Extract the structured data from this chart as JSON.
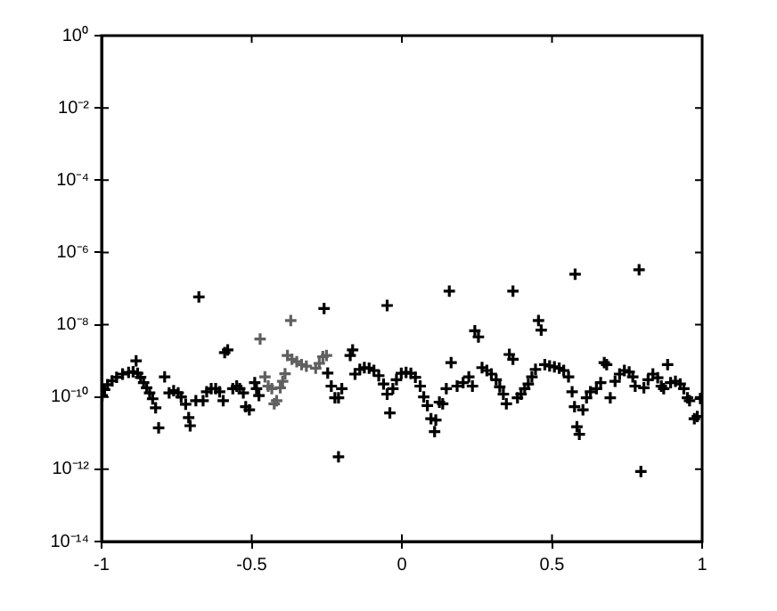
{
  "chart_data": {
    "type": "scatter",
    "log": "y",
    "grid": false,
    "legend": false,
    "marker": "cross",
    "xlim": [
      -1,
      1
    ],
    "xticks": [
      -1,
      -0.5,
      0,
      0.5,
      1
    ],
    "ylim": [
      1e-14,
      1
    ],
    "yticks": [
      {
        "value": 1e-14,
        "label": "10⁻¹⁴"
      },
      {
        "value": 1e-12,
        "label": "10⁻¹²"
      },
      {
        "value": 1e-10,
        "label": "10⁻¹⁰"
      },
      {
        "value": 1e-08,
        "label": "10⁻⁸"
      },
      {
        "value": 1e-06,
        "label": "10⁻⁶"
      },
      {
        "value": 0.0001,
        "label": "10⁻⁴"
      },
      {
        "value": 0.01,
        "label": "10⁻²"
      },
      {
        "value": 1,
        "label": "10⁰"
      }
    ],
    "series": [
      {
        "color": "#000000",
        "x": [
          -0.998,
          -0.99,
          -0.98,
          -0.965,
          -0.95,
          -0.93,
          -0.91,
          -0.895,
          -0.88,
          -0.87,
          -0.86,
          -0.85,
          -0.84,
          -0.83,
          -0.82,
          -0.81,
          -0.885,
          -0.79,
          -0.775,
          -0.76,
          -0.745,
          -0.735,
          -0.72,
          -0.71,
          -0.705,
          -0.686,
          -0.676,
          -0.662,
          -0.65,
          -0.635,
          -0.62,
          -0.607,
          -0.595,
          -0.59,
          -0.58,
          -0.563,
          -0.55,
          -0.54,
          -0.528,
          -0.52,
          -0.508,
          -0.49,
          -0.484,
          -0.476,
          -0.259,
          -0.247,
          -0.235,
          -0.223,
          -0.211,
          -0.2,
          -0.211,
          -0.172,
          -0.164,
          -0.156,
          -0.14,
          -0.125,
          -0.109,
          -0.093,
          -0.077,
          -0.061,
          -0.049,
          -0.04,
          -0.049,
          -0.03,
          -0.018,
          -0.002,
          0.014,
          0.03,
          0.045,
          0.061,
          0.073,
          0.085,
          0.097,
          0.109,
          0.113,
          0.125,
          0.136,
          0.164,
          0.158,
          0.148,
          0.184,
          0.204,
          0.223,
          0.235,
          0.243,
          0.255,
          0.267,
          0.283,
          0.298,
          0.314,
          0.326,
          0.338,
          0.348,
          0.358,
          0.37,
          0.37,
          0.385,
          0.397,
          0.409,
          0.421,
          0.433,
          0.445,
          0.455,
          0.464,
          0.476,
          0.492,
          0.508,
          0.524,
          0.539,
          0.555,
          0.567,
          0.575,
          0.583,
          0.591,
          0.577,
          0.603,
          0.615,
          0.628,
          0.648,
          0.662,
          0.674,
          0.682,
          0.694,
          0.71,
          0.725,
          0.741,
          0.757,
          0.769,
          0.777,
          0.79,
          0.796,
          0.806,
          0.82,
          0.836,
          0.852,
          0.864,
          0.885,
          0.872,
          0.895,
          0.911,
          0.927,
          0.939,
          0.951,
          0.958,
          0.974,
          0.984,
          0.994
        ],
        "values": [
          1.1e-10,
          1.6e-10,
          2.2e-10,
          2.8e-10,
          3.5e-10,
          4.3e-10,
          4.8e-10,
          5e-10,
          4.5e-10,
          3.5e-10,
          2.5e-10,
          1.8e-10,
          1.3e-10,
          8.9e-11,
          5e-11,
          1.4e-11,
          1e-09,
          3.6e-10,
          1.3e-10,
          1.5e-10,
          1.3e-10,
          1e-10,
          6.3e-11,
          2.7e-11,
          1.6e-11,
          7.9e-11,
          5.9e-08,
          7.9e-11,
          1.4e-10,
          1.7e-10,
          1.7e-10,
          1.4e-10,
          7.9e-11,
          1.7e-09,
          2e-09,
          1.7e-10,
          2e-10,
          1.7e-10,
          1.3e-10,
          5.4e-11,
          4.4e-11,
          2.5e-10,
          1.7e-10,
          1.1e-10,
          2.8e-08,
          4.6e-10,
          2e-10,
          9.5e-11,
          9.5e-11,
          1.7e-10,
          2.2e-12,
          1.4e-09,
          2e-09,
          4.3e-10,
          5.8e-10,
          6.5e-10,
          6.3e-10,
          5.4e-10,
          3.9e-10,
          2.3e-10,
          1.2e-10,
          3.6e-11,
          3.4e-08,
          1.7e-10,
          3e-10,
          4.5e-10,
          4.8e-10,
          4.5e-10,
          3.5e-10,
          2e-10,
          1e-10,
          5.8e-11,
          2.5e-11,
          1.1e-11,
          2.3e-11,
          7.2e-11,
          6.5e-11,
          8.9e-10,
          8.5e-08,
          1.7e-10,
          2e-10,
          2.5e-10,
          3.6e-10,
          2e-10,
          6.8e-09,
          4.6e-09,
          6.5e-10,
          5.4e-10,
          4.3e-10,
          3e-10,
          1.9e-10,
          1.2e-10,
          6.5e-11,
          1.5e-09,
          1.1e-09,
          8.5e-08,
          9.5e-11,
          1.2e-10,
          1.7e-10,
          2.3e-10,
          3.6e-10,
          5.8e-10,
          1.3e-08,
          7.1e-09,
          7.9e-10,
          7.2e-10,
          6.8e-10,
          6.3e-10,
          5.4e-10,
          3.6e-10,
          1.4e-10,
          5.4e-11,
          1.5e-11,
          9.3e-12,
          2.5e-07,
          4.4e-11,
          9.5e-11,
          1.4e-10,
          1.7e-10,
          2.5e-10,
          8.9e-10,
          7.9e-10,
          9.5e-11,
          2.7e-10,
          4.3e-10,
          5.4e-10,
          4.9e-10,
          3.6e-10,
          2e-10,
          3.3e-07,
          8.7e-13,
          1.8e-10,
          3e-10,
          4.3e-10,
          3.4e-10,
          2e-10,
          7.9e-10,
          1.7e-10,
          2.5e-10,
          2.7e-10,
          2.3e-10,
          1.7e-10,
          9.5e-11,
          7.9e-11,
          2.5e-11,
          2.9e-11,
          9.1e-11
        ]
      },
      {
        "color": "#606060",
        "x": [
          -0.472,
          -0.456,
          -0.445,
          -0.433,
          -0.425,
          -0.417,
          -0.405,
          -0.397,
          -0.389,
          -0.37,
          -0.381,
          -0.366,
          -0.35,
          -0.334,
          -0.318,
          -0.302,
          -0.287,
          -0.275,
          -0.263,
          -0.251
        ],
        "values": [
          4e-09,
          3.6e-10,
          2e-10,
          1.7e-10,
          6.5e-11,
          7.9e-11,
          1.8e-10,
          2.7e-10,
          4.4e-10,
          1.3e-08,
          1.4e-09,
          1.1e-09,
          9.5e-10,
          7.9e-10,
          7.1e-10,
          null,
          6.3e-10,
          8.5e-10,
          1.3e-09,
          1.4e-09
        ]
      }
    ]
  }
}
